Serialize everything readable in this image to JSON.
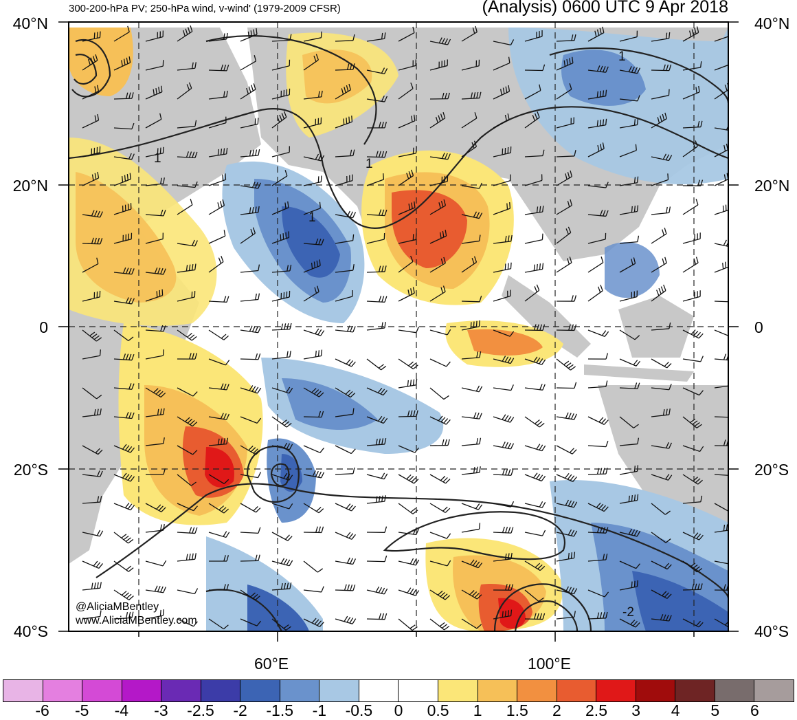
{
  "header": {
    "subtitle": "300-200-hPa PV; 250-hPa wind, v-wind' (1979-2009 CFSR)",
    "title": "(Analysis) 0600 UTC 9 Apr 2018"
  },
  "axes": {
    "y_left": [
      "40°N",
      "20°N",
      "0",
      "20°S",
      "40°S"
    ],
    "y_right": [
      "40°N",
      "20°N",
      "0",
      "20°S",
      "40°S"
    ],
    "x": [
      "60°E",
      "100°E"
    ]
  },
  "map": {
    "contour_labels": [
      "1",
      "1",
      "1",
      "1",
      "-2"
    ]
  },
  "credit": {
    "twitter": "@AliciaMBentley",
    "website": "www.AliciaMBentley.com"
  },
  "colorbar": {
    "labels": [
      "-6",
      "-5",
      "-4",
      "-3",
      "-2.5",
      "-2",
      "-1.5",
      "-1",
      "-0.5",
      "0",
      "0.5",
      "1",
      "1.5",
      "2",
      "2.5",
      "3",
      "4",
      "5",
      "6"
    ],
    "colors": [
      "#e8b4e6",
      "#e47fe0",
      "#d44ad6",
      "#b418c8",
      "#6a2ab4",
      "#3c3ca8",
      "#3c64b4",
      "#6a92cc",
      "#a8c8e4",
      "#ffffff",
      "#ffffff",
      "#fbe678",
      "#f6c058",
      "#f29040",
      "#e85c30",
      "#e01818",
      "#a00c0c",
      "#6e2424",
      "#786c6c",
      "#a69c9c"
    ]
  },
  "palette": {
    "land": "#c8c8c8",
    "ocean": "#ffffff",
    "blue_light": "#a8c8e4",
    "blue_mid": "#6a92cc",
    "blue_dark": "#3c64b4",
    "yellow": "#fbe678",
    "orange_light": "#f6c058",
    "orange": "#f29040",
    "red_orange": "#e85c30",
    "red": "#e01818"
  }
}
